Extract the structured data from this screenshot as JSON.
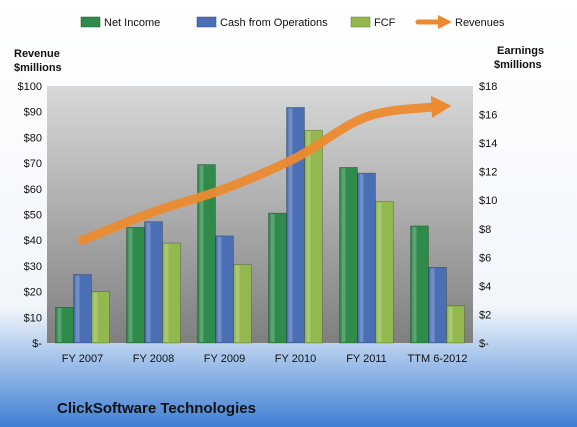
{
  "chart_data": {
    "type": "bar",
    "categories": [
      "FY 2007",
      "FY 2008",
      "FY 2009",
      "FY 2010",
      "FY 2011",
      "TTM 6-2012"
    ],
    "series": [
      {
        "name": "Net Income",
        "axis": "right",
        "color": "#2e8b4a",
        "values": [
          2.5,
          8.1,
          12.5,
          9.1,
          12.3,
          8.2
        ]
      },
      {
        "name": "Cash from Operations",
        "axis": "right",
        "color": "#4a6fb5",
        "values": [
          4.8,
          8.5,
          7.5,
          16.5,
          11.9,
          5.3
        ]
      },
      {
        "name": "FCF",
        "axis": "right",
        "color": "#92b84e",
        "values": [
          3.6,
          7.0,
          5.5,
          14.9,
          9.9,
          2.6
        ]
      }
    ],
    "line_series": {
      "name": "Revenues",
      "axis": "left",
      "type": "line",
      "color": "#ec8a2f",
      "values": [
        40,
        51,
        60,
        72,
        88,
        92
      ]
    },
    "left_axis": {
      "label_line1": "Revenue",
      "label_line2": "$millions",
      "ylim": [
        0,
        100
      ],
      "ticks": [
        "$-",
        "$10",
        "$20",
        "$30",
        "$40",
        "$50",
        "$60",
        "$70",
        "$80",
        "$90",
        "$100"
      ]
    },
    "right_axis": {
      "label_line1": "Earnings",
      "label_line2": "$millions",
      "ylim": [
        0,
        18
      ],
      "ticks": [
        "$-",
        "$2",
        "$4",
        "$6",
        "$8",
        "$10",
        "$12",
        "$14",
        "$16",
        "$18"
      ]
    },
    "grid": false,
    "legend_position": "top",
    "company": "ClickSoftware Technologies",
    "colors": {
      "plot_background_top": "#d8d8d8",
      "plot_background_bottom": "#7f7f7f",
      "page_background_top": "#ffffff",
      "page_background_bottom": "#3f7fd4"
    }
  }
}
